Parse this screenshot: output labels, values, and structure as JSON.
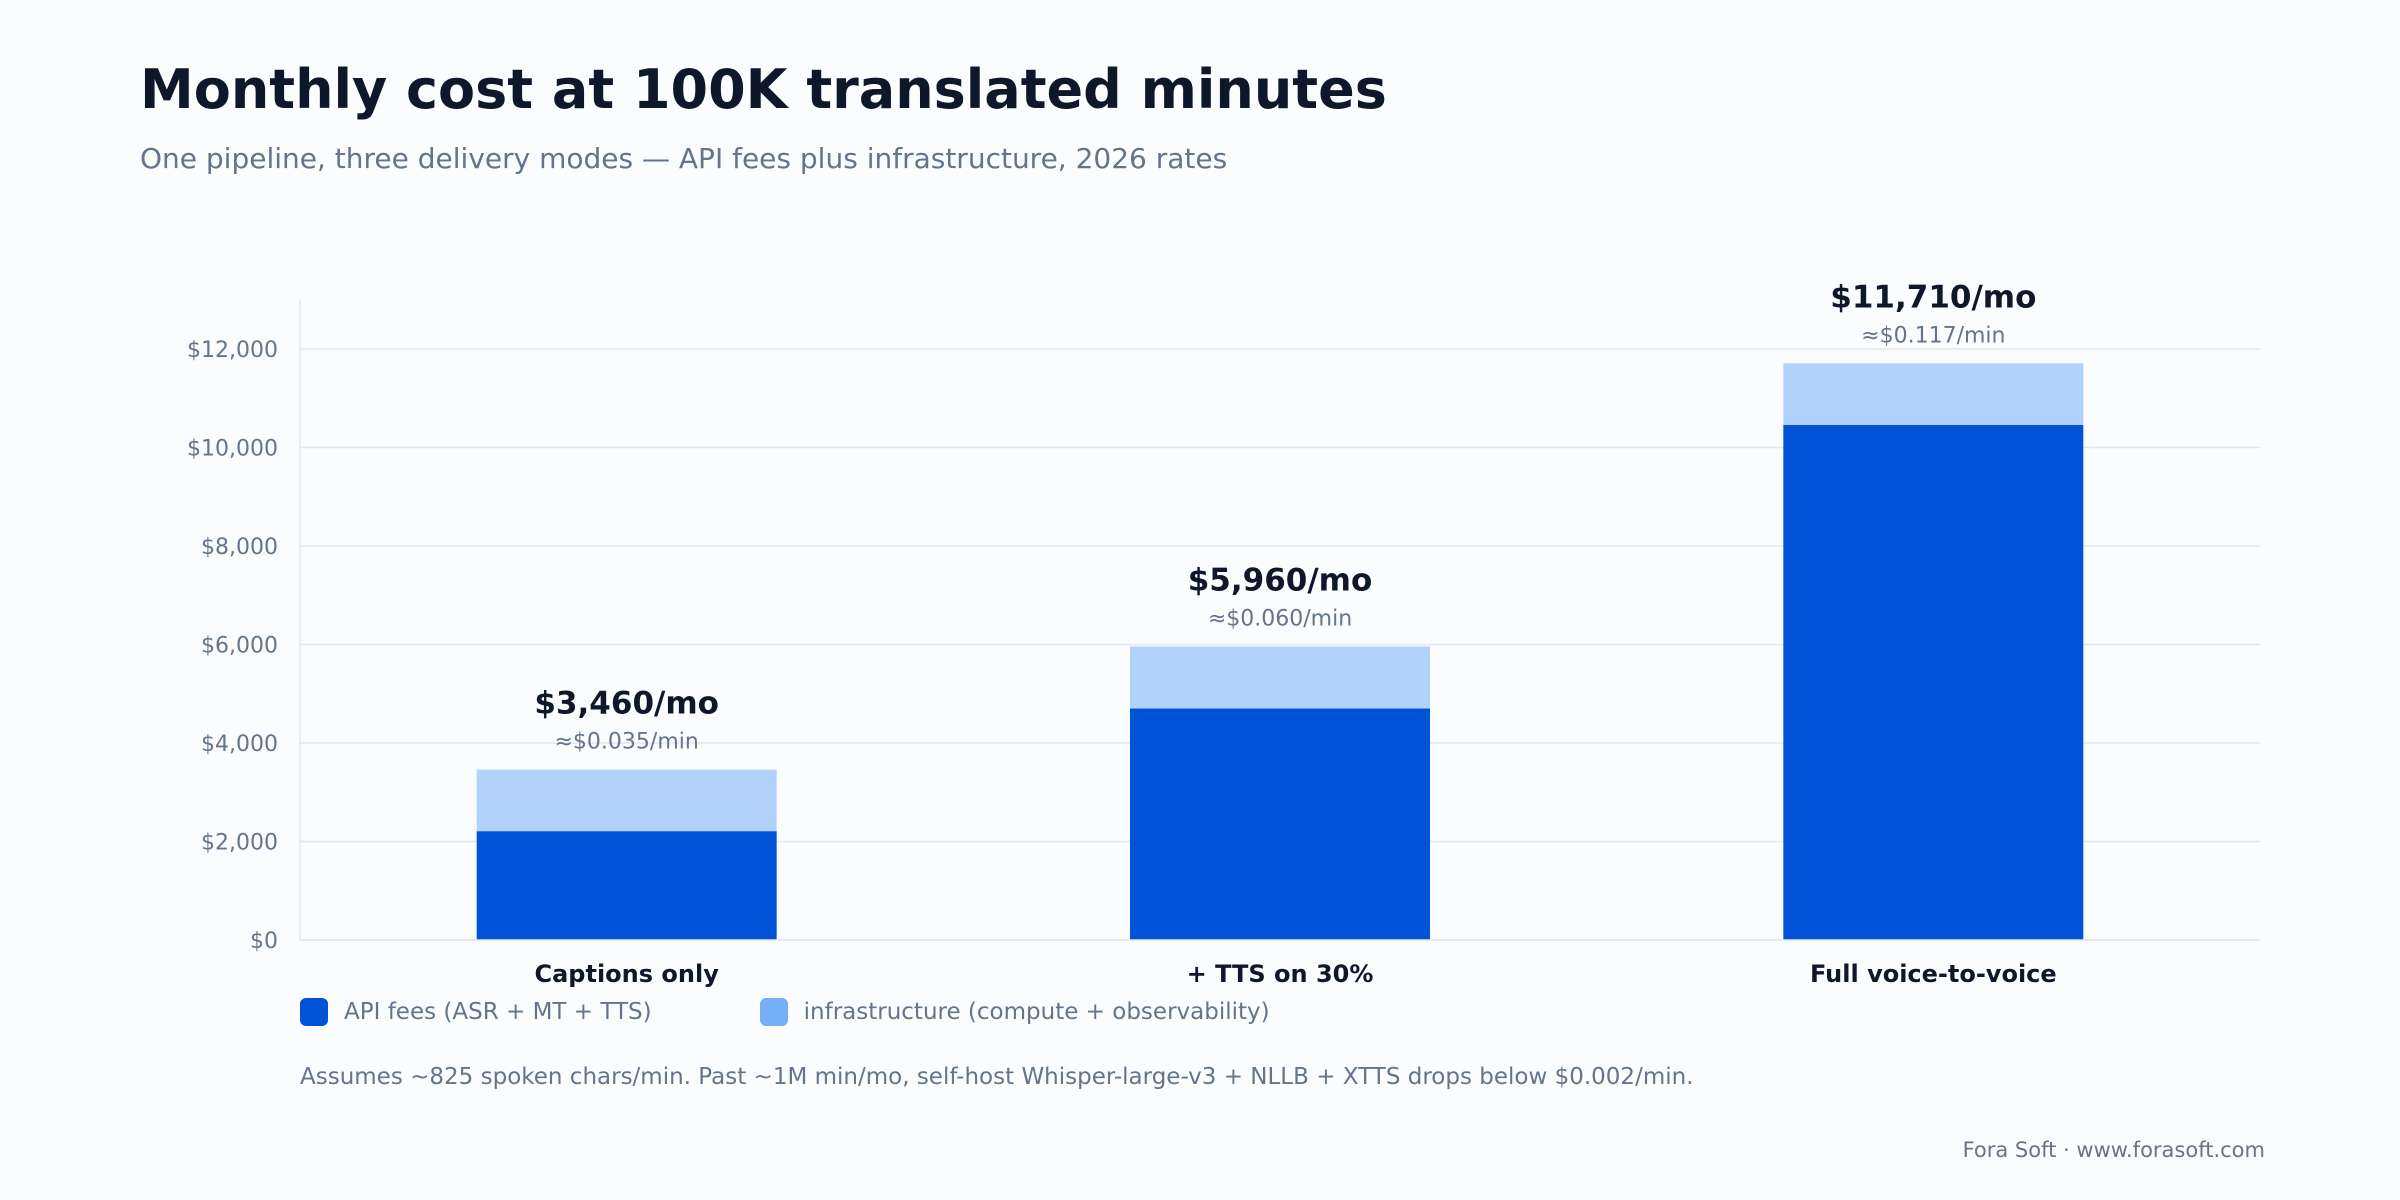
{
  "title": "Monthly cost at 100K translated minutes",
  "subtitle": "One pipeline, three delivery modes — API fees plus infrastructure, 2026 rates",
  "legend": {
    "items": [
      {
        "label": "API fees (ASR + MT + TTS)",
        "color": "#0052d6"
      },
      {
        "label": "infrastructure (compute + observability)",
        "color": "#74b0f5"
      }
    ]
  },
  "footnote": "Assumes ~825 spoken chars/min. Past ~1M min/mo, self-host Whisper-large-v3 + NLLB + XTTS drops below $0.002/min.",
  "credit": "Fora Soft · www.forasoft.com",
  "colors": {
    "api": "#0052d6",
    "infra": "#b1d3fb",
    "legend_infra": "#74b0f5",
    "grid": "#e2e8f0",
    "axis_text": "#64748b",
    "title": "#0f172a"
  },
  "chart_data": {
    "type": "bar",
    "stacked": true,
    "categories": [
      "Captions only",
      "+ TTS on 30%",
      "Full voice-to-voice"
    ],
    "series": [
      {
        "name": "API fees (ASR + MT + TTS)",
        "values": [
          2210,
          4700,
          10460
        ]
      },
      {
        "name": "infrastructure (compute + observability)",
        "values": [
          1250,
          1260,
          1250
        ]
      }
    ],
    "totals": [
      3460,
      5960,
      11710
    ],
    "total_labels": [
      "$3,460/mo",
      "$5,960/mo",
      "$11,710/mo"
    ],
    "per_min_labels": [
      "≈$0.035/min",
      "≈$0.060/min",
      "≈$0.117/min"
    ],
    "ylim": [
      0,
      12000
    ],
    "yticks": [
      0,
      2000,
      4000,
      6000,
      8000,
      10000,
      12000
    ],
    "ytick_labels": [
      "$0",
      "$2,000",
      "$4,000",
      "$6,000",
      "$8,000",
      "$10,000",
      "$12,000"
    ],
    "grid": true,
    "legend_position": "bottom-left"
  }
}
